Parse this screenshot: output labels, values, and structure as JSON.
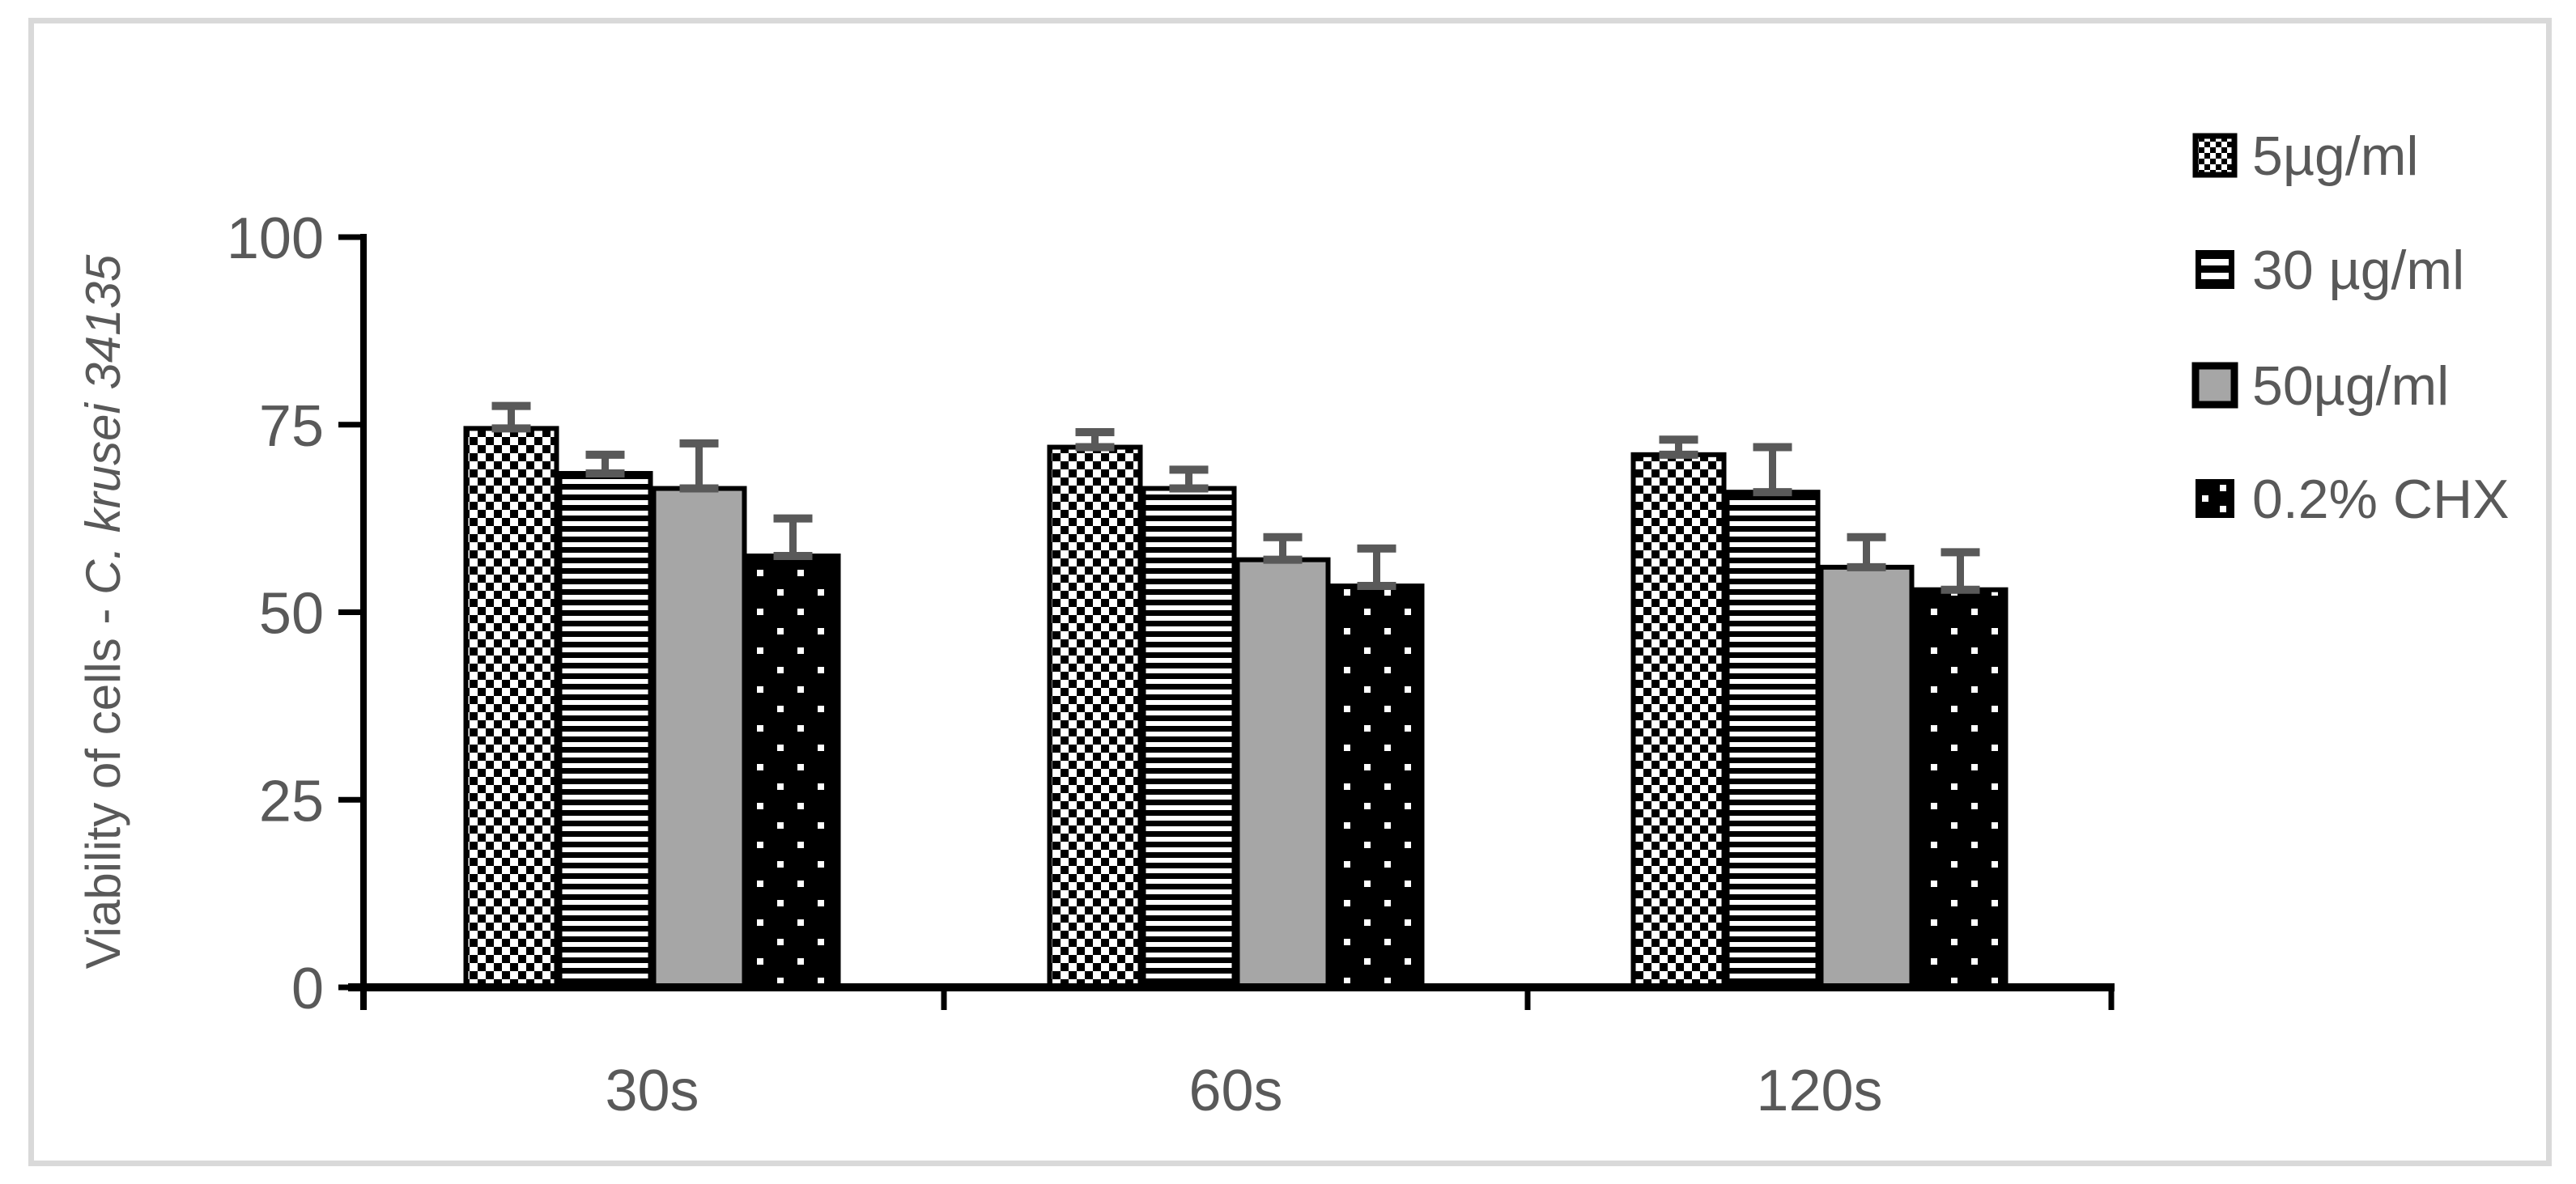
{
  "frame": {
    "border_color": "#d9d9d9",
    "background": "#ffffff"
  },
  "chart_data": {
    "type": "bar",
    "title": "",
    "xlabel": "",
    "ylabel_prefix": "Viability of cells - ",
    "ylabel_italic": "C. krusei 34135",
    "categories": [
      "30s",
      "60s",
      "120s"
    ],
    "y_ticks": [
      0,
      25,
      50,
      75,
      100
    ],
    "ylim": [
      0,
      100
    ],
    "grid": false,
    "legend_position": "right",
    "error_bars": "plus-direction-with-caps",
    "series": [
      {
        "name": "5µg/ml",
        "pattern": "checkerboard",
        "values": [
          74.5,
          72,
          71
        ],
        "errors": [
          3,
          2,
          2
        ]
      },
      {
        "name": "30 µg/ml",
        "pattern": "horizontal-stripes",
        "values": [
          68.5,
          66.5,
          66
        ],
        "errors": [
          2.5,
          2.5,
          6
        ]
      },
      {
        "name": "50µg/ml",
        "pattern": "solid-gray",
        "values": [
          66.5,
          57,
          56
        ],
        "errors": [
          6,
          3,
          4
        ]
      },
      {
        "name": "0.2% CHX",
        "pattern": "white-dots-on-black",
        "values": [
          57.5,
          53.5,
          53
        ],
        "errors": [
          5,
          5,
          5
        ]
      }
    ],
    "colors": {
      "axis": "#000000",
      "bar_outline": "#000000",
      "text": "#595959",
      "error_bar": "#595959",
      "gray_fill": "#a6a6a6",
      "pattern_black": "#000000",
      "pattern_white": "#ffffff"
    }
  }
}
